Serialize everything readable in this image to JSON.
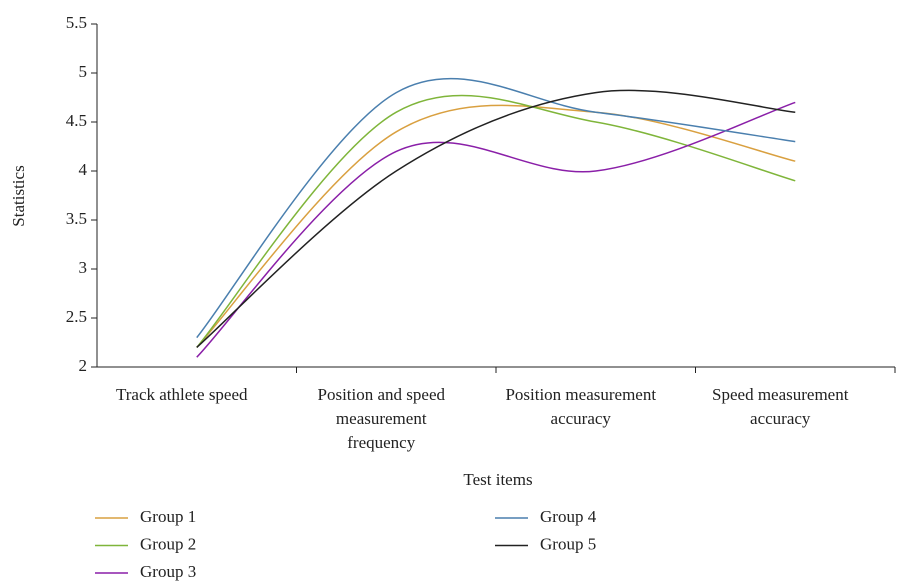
{
  "chart_data": {
    "type": "line",
    "x_label": "Test items",
    "y_label": "Statistics",
    "categories": [
      "Track athlete speed",
      "Position and speed measurement frequency",
      "Position measurement accuracy",
      "Speed measurement accuracy"
    ],
    "series": [
      {
        "name": "Group 1",
        "color": "#d9a040",
        "values": [
          2.2,
          4.4,
          4.6,
          4.1
        ]
      },
      {
        "name": "Group 2",
        "color": "#7fb53a",
        "values": [
          2.2,
          4.6,
          4.5,
          3.9
        ]
      },
      {
        "name": "Group 3",
        "color": "#8a1fa8",
        "values": [
          2.1,
          4.2,
          4.0,
          4.7
        ]
      },
      {
        "name": "Group 4",
        "color": "#4a7fae",
        "values": [
          2.3,
          4.8,
          4.6,
          4.3
        ]
      },
      {
        "name": "Group 5",
        "color": "#222222",
        "values": [
          2.2,
          4.0,
          4.8,
          4.6
        ]
      }
    ],
    "ylim": [
      2,
      5.5
    ],
    "yticks": [
      2,
      2.5,
      3,
      3.5,
      4,
      4.5,
      5,
      5.5
    ],
    "smooth": true,
    "grid": false
  }
}
